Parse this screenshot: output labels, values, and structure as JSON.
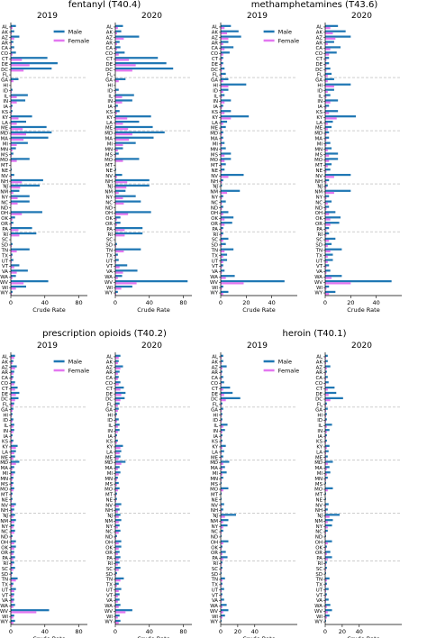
{
  "states": [
    "AL",
    "AK",
    "AZ",
    "AR",
    "CA",
    "CO",
    "CT",
    "DE",
    "DC",
    "FL",
    "GA",
    "HI",
    "ID",
    "IL",
    "IN",
    "IA",
    "KS",
    "KY",
    "LA",
    "ME",
    "MD",
    "MA",
    "MI",
    "MN",
    "MS",
    "MO",
    "MT",
    "NE",
    "NV",
    "NH",
    "NJ",
    "NM",
    "NY",
    "NC",
    "ND",
    "OH",
    "OK",
    "OR",
    "PA",
    "RI",
    "SC",
    "SD",
    "TN",
    "TX",
    "UT",
    "VT",
    "VA",
    "WA",
    "WV",
    "WI",
    "WY"
  ],
  "colors": {
    "male": "#1f77b4",
    "female": "#e377f0",
    "divider": "#b0b0b0"
  },
  "chart_data": [
    {
      "type": "bar",
      "title": "fentanyl (T40.4)",
      "xlabel": "Crude Rate",
      "xlim": [
        0,
        90
      ],
      "xticks": [
        0,
        40,
        80
      ],
      "legend": [
        "Male",
        "Female"
      ],
      "legend_loc": "top-right",
      "panels": [
        {
          "title": "2019",
          "series": [
            {
              "name": "Male",
              "values": [
                6,
                4,
                10,
                3,
                4,
                6,
                43,
                55,
                48,
                0,
                9,
                0,
                2,
                20,
                17,
                2,
                2,
                25,
                18,
                42,
                48,
                44,
                20,
                6,
                3,
                22,
                0,
                1,
                4,
                38,
                34,
                10,
                22,
                22,
                0,
                37,
                5,
                3,
                25,
                30,
                0,
                2,
                22,
                2,
                3,
                10,
                20,
                6,
                44,
                18,
                2
              ]
            },
            {
              "name": "Female",
              "values": [
                2,
                1,
                4,
                1,
                1,
                2,
                13,
                22,
                15,
                0,
                3,
                0,
                1,
                7,
                7,
                1,
                1,
                9,
                7,
                14,
                18,
                15,
                7,
                2,
                1,
                7,
                0,
                0,
                1,
                13,
                11,
                3,
                8,
                8,
                0,
                13,
                2,
                1,
                9,
                10,
                0,
                1,
                7,
                1,
                1,
                4,
                7,
                2,
                15,
                6,
                1
              ]
            }
          ]
        },
        {
          "title": "2020",
          "series": [
            {
              "name": "Male",
              "values": [
                9,
                7,
                28,
                5,
                6,
                11,
                50,
                60,
                68,
                0,
                12,
                0,
                4,
                22,
                20,
                3,
                5,
                42,
                28,
                44,
                58,
                45,
                24,
                9,
                4,
                28,
                0,
                1,
                8,
                40,
                40,
                12,
                24,
                30,
                0,
                42,
                6,
                6,
                32,
                32,
                0,
                2,
                30,
                3,
                4,
                14,
                26,
                8,
                85,
                20,
                3
              ]
            },
            {
              "name": "Female",
              "values": [
                3,
                2,
                10,
                2,
                2,
                4,
                16,
                24,
                20,
                0,
                4,
                0,
                1,
                8,
                8,
                1,
                2,
                14,
                9,
                15,
                20,
                16,
                9,
                3,
                1,
                9,
                0,
                0,
                2,
                14,
                13,
                4,
                9,
                10,
                0,
                15,
                2,
                2,
                11,
                11,
                0,
                1,
                10,
                1,
                1,
                5,
                9,
                3,
                25,
                7,
                1
              ]
            }
          ]
        }
      ]
    },
    {
      "type": "bar",
      "title": "methamphetamines (T43.6)",
      "xlabel": "Crude Rate",
      "xlim": [
        0,
        60
      ],
      "xticks": [
        0,
        20,
        40
      ],
      "legend": [
        "Male",
        "Female"
      ],
      "legend_loc": "top-right",
      "panels": [
        {
          "title": "2019",
          "series": [
            {
              "name": "Male",
              "values": [
                8,
                14,
                16,
                6,
                10,
                7,
                2,
                2,
                3,
                4,
                6,
                20,
                6,
                3,
                8,
                2,
                8,
                22,
                5,
                4,
                2,
                2,
                3,
                4,
                8,
                8,
                4,
                3,
                18,
                2,
                1,
                15,
                2,
                4,
                2,
                6,
                10,
                9,
                2,
                2,
                6,
                4,
                10,
                5,
                5,
                2,
                3,
                11,
                50,
                2,
                6
              ]
            },
            {
              "name": "Female",
              "values": [
                3,
                5,
                6,
                2,
                3,
                2,
                1,
                1,
                1,
                1,
                2,
                6,
                2,
                1,
                3,
                1,
                3,
                8,
                2,
                1,
                1,
                1,
                1,
                1,
                3,
                3,
                1,
                1,
                6,
                1,
                0,
                5,
                1,
                1,
                1,
                2,
                3,
                3,
                1,
                1,
                2,
                1,
                3,
                2,
                2,
                1,
                1,
                4,
                18,
                1,
                2
              ]
            }
          ]
        },
        {
          "title": "2020",
          "series": [
            {
              "name": "Male",
              "values": [
                10,
                16,
                20,
                7,
                12,
                9,
                3,
                3,
                4,
                5,
                7,
                20,
                7,
                4,
                10,
                3,
                10,
                24,
                6,
                5,
                3,
                3,
                4,
                5,
                10,
                10,
                5,
                4,
                20,
                3,
                2,
                20,
                3,
                5,
                3,
                8,
                12,
                11,
                3,
                3,
                8,
                5,
                13,
                6,
                6,
                3,
                4,
                13,
                52,
                3,
                8
              ]
            },
            {
              "name": "Female",
              "values": [
                4,
                6,
                8,
                2,
                4,
                3,
                1,
                1,
                1,
                2,
                2,
                7,
                2,
                1,
                4,
                1,
                3,
                9,
                2,
                2,
                1,
                1,
                1,
                2,
                3,
                3,
                2,
                1,
                7,
                1,
                1,
                7,
                1,
                2,
                1,
                3,
                4,
                4,
                1,
                1,
                3,
                2,
                4,
                2,
                2,
                1,
                1,
                5,
                20,
                1,
                3
              ]
            }
          ]
        }
      ]
    },
    {
      "type": "bar",
      "title": "prescription opioids  (T40.2)",
      "xlabel": "Crude Rate",
      "xlim": [
        0,
        90
      ],
      "xticks": [
        0,
        40,
        80
      ],
      "legend": [
        "Male",
        "Female"
      ],
      "legend_loc": "top-right",
      "panels": [
        {
          "title": "2019",
          "series": [
            {
              "name": "Male",
              "values": [
                5,
                3,
                7,
                4,
                3,
                5,
                8,
                10,
                9,
                4,
                3,
                2,
                3,
                4,
                4,
                2,
                3,
                8,
                6,
                5,
                10,
                4,
                5,
                3,
                3,
                4,
                2,
                2,
                6,
                4,
                5,
                6,
                4,
                5,
                2,
                6,
                6,
                4,
                5,
                4,
                5,
                2,
                8,
                3,
                6,
                4,
                4,
                5,
                45,
                4,
                5
              ]
            },
            {
              "name": "Female",
              "values": [
                4,
                2,
                5,
                3,
                2,
                4,
                5,
                6,
                5,
                3,
                2,
                1,
                2,
                3,
                3,
                1,
                2,
                6,
                4,
                3,
                6,
                2,
                3,
                2,
                2,
                3,
                1,
                1,
                4,
                2,
                3,
                4,
                3,
                4,
                1,
                4,
                4,
                3,
                3,
                2,
                3,
                1,
                6,
                2,
                4,
                3,
                3,
                3,
                30,
                3,
                3
              ]
            }
          ]
        },
        {
          "title": "2020",
          "series": [
            {
              "name": "Male",
              "values": [
                6,
                4,
                9,
                5,
                4,
                6,
                10,
                12,
                11,
                5,
                4,
                2,
                4,
                5,
                5,
                2,
                3,
                9,
                7,
                6,
                12,
                5,
                6,
                3,
                4,
                5,
                2,
                2,
                7,
                5,
                6,
                7,
                5,
                6,
                2,
                7,
                7,
                5,
                6,
                5,
                6,
                2,
                10,
                4,
                7,
                5,
                5,
                6,
                20,
                5,
                6
              ]
            },
            {
              "name": "Female",
              "values": [
                4,
                3,
                6,
                3,
                3,
                4,
                6,
                7,
                6,
                3,
                3,
                1,
                2,
                3,
                3,
                1,
                2,
                6,
                5,
                4,
                7,
                3,
                4,
                2,
                2,
                3,
                1,
                1,
                4,
                3,
                4,
                4,
                3,
                4,
                1,
                4,
                4,
                3,
                4,
                3,
                4,
                1,
                6,
                2,
                4,
                3,
                3,
                4,
                12,
                3,
                4
              ]
            }
          ]
        }
      ]
    },
    {
      "type": "bar",
      "title": "heroin  (T40.1)",
      "xlabel": "Crude Rate",
      "xlim": [
        0,
        90
      ],
      "xticks": [
        0,
        20,
        40
      ],
      "legend": [
        "Male",
        "Female"
      ],
      "legend_loc": "top-right",
      "panels": [
        {
          "title": "2019",
          "series": [
            {
              "name": "Male",
              "values": [
                3,
                3,
                7,
                2,
                3,
                4,
                11,
                14,
                23,
                2,
                3,
                2,
                2,
                8,
                5,
                2,
                2,
                6,
                4,
                3,
                10,
                5,
                7,
                3,
                1,
                9,
                1,
                1,
                4,
                3,
                18,
                9,
                8,
                3,
                1,
                9,
                2,
                6,
                8,
                2,
                2,
                1,
                5,
                2,
                4,
                2,
                4,
                7,
                9,
                5,
                1
              ]
            },
            {
              "name": "Female",
              "values": [
                1,
                1,
                2,
                1,
                1,
                1,
                3,
                4,
                6,
                1,
                1,
                1,
                1,
                3,
                2,
                1,
                1,
                2,
                1,
                1,
                3,
                2,
                2,
                1,
                0,
                3,
                0,
                0,
                1,
                1,
                5,
                3,
                3,
                1,
                0,
                3,
                1,
                2,
                3,
                1,
                1,
                0,
                2,
                1,
                1,
                1,
                1,
                2,
                3,
                2,
                0
              ]
            }
          ]
        },
        {
          "title": "2020",
          "series": [
            {
              "name": "Male",
              "values": [
                3,
                3,
                6,
                2,
                3,
                4,
                11,
                13,
                21,
                2,
                3,
                2,
                2,
                8,
                5,
                2,
                2,
                5,
                4,
                3,
                9,
                5,
                6,
                3,
                1,
                9,
                1,
                1,
                4,
                3,
                17,
                9,
                8,
                3,
                1,
                8,
                2,
                6,
                8,
                2,
                2,
                1,
                5,
                2,
                4,
                2,
                4,
                6,
                8,
                5,
                1
              ]
            },
            {
              "name": "Female",
              "values": [
                1,
                1,
                2,
                1,
                1,
                1,
                3,
                4,
                6,
                1,
                1,
                1,
                1,
                2,
                2,
                1,
                1,
                2,
                1,
                1,
                3,
                2,
                2,
                1,
                0,
                3,
                0,
                0,
                1,
                1,
                5,
                3,
                3,
                1,
                0,
                3,
                1,
                2,
                3,
                1,
                1,
                0,
                2,
                1,
                1,
                1,
                1,
                2,
                3,
                2,
                0
              ]
            }
          ]
        }
      ]
    }
  ]
}
